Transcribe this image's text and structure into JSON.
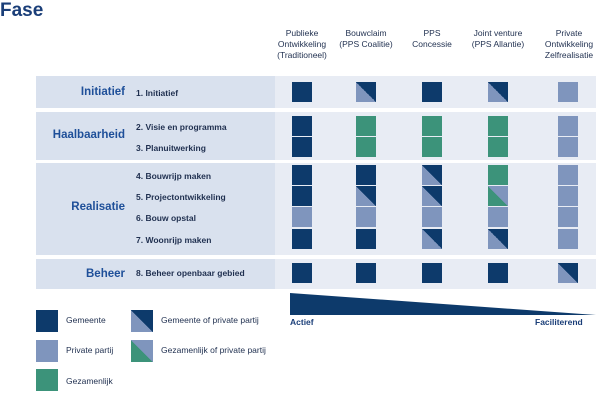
{
  "title": "Fase",
  "columns": [
    {
      "label": "Publieke\nOntwikkeling\n(Traditioneel)"
    },
    {
      "label": "Bouwclaim\n(PPS Coalitie)"
    },
    {
      "label": "PPS\nConcessie"
    },
    {
      "label": "Joint venture\n(PPS Allantie)"
    },
    {
      "label": "Private\nOntwikkeling\nZelfrealisatie"
    }
  ],
  "phases": [
    {
      "name": "Initiatief",
      "steps": [
        {
          "label": "1. Initiatief",
          "cells": [
            "dark",
            "dark-light",
            "dark",
            "dark-light",
            "light"
          ]
        }
      ]
    },
    {
      "name": "Haalbaarheid",
      "steps": [
        {
          "label": "2. Visie en programma",
          "cells": [
            "dark",
            "green",
            "green",
            "green",
            "light"
          ]
        },
        {
          "label": "3. Planuitwerking",
          "cells": [
            "dark",
            "green",
            "green",
            "green",
            "light"
          ]
        }
      ]
    },
    {
      "name": "Realisatie",
      "steps": [
        {
          "label": "4. Bouwrijp maken",
          "cells": [
            "dark",
            "dark",
            "dark-light",
            "green",
            "light"
          ]
        },
        {
          "label": "5. Projectontwikkeling",
          "cells": [
            "dark",
            "dark-light",
            "dark-light",
            "light-green",
            "light"
          ]
        },
        {
          "label": "6. Bouw opstal",
          "cells": [
            "light",
            "light",
            "light",
            "light",
            "light"
          ]
        },
        {
          "label": "7. Woonrijp maken",
          "cells": [
            "dark",
            "dark",
            "dark-light",
            "dark-light",
            "light"
          ]
        }
      ]
    },
    {
      "name": "Beheer",
      "steps": [
        {
          "label": "8. Beheer openbaar gebied",
          "cells": [
            "dark",
            "dark",
            "dark",
            "dark",
            "dark-light"
          ]
        }
      ]
    }
  ],
  "scale": {
    "left": "Actief",
    "right": "Faciliterend"
  },
  "legend": [
    {
      "type": "dark",
      "label": "Gemeente"
    },
    {
      "type": "dark-light",
      "label": "Gemeente of private partij"
    },
    {
      "type": "light",
      "label": "Private partij"
    },
    {
      "type": "light-green",
      "label": "Gezamenlijk of private partij"
    },
    {
      "type": "green",
      "label": "Gezamenlijk"
    }
  ],
  "colors": {
    "dark": "#0d3a6b",
    "light": "#7f95bd",
    "green": "#3c937a",
    "row_band": "#d9e1ee",
    "accent": "#1e4f99"
  }
}
